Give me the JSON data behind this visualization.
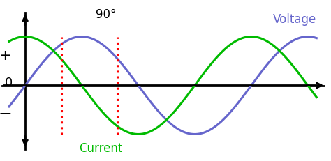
{
  "bg_color": "#ffffff",
  "voltage_color": "#6666cc",
  "current_color": "#00bb00",
  "axis_color": "#000000",
  "dashed_line_color": "#ff0000",
  "voltage_label": "Voltage",
  "current_label": "Current",
  "phase_label": "90°",
  "plus_label": "+",
  "minus_label": "−",
  "zero_label": "0",
  "xlim": [
    -0.7,
    8.5
  ],
  "ylim": [
    -1.55,
    1.75
  ],
  "amplitude": 1.0,
  "voltage_phase": 0.0,
  "current_phase": 1.5707963,
  "dashed_x1": 1.0,
  "dashed_x2": 2.57,
  "x_start": -0.45,
  "x_end": 8.1,
  "figsize": [
    4.74,
    2.31
  ],
  "dpi": 100
}
